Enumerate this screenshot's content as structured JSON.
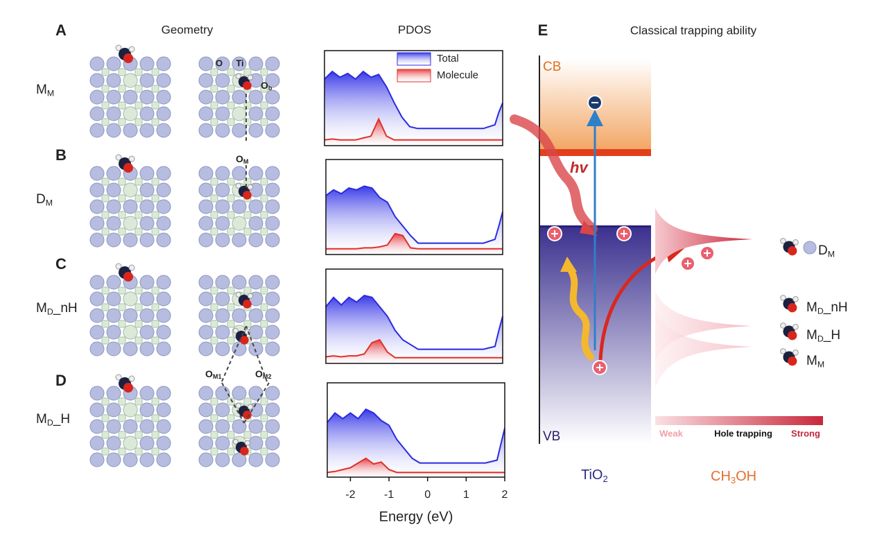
{
  "figure": {
    "geometry_title": "Geometry",
    "pdos_title": "PDOS",
    "panels": [
      {
        "letter": "A",
        "label": {
          "base": "M",
          "sub": "M",
          "rest": ""
        }
      },
      {
        "letter": "B",
        "label": {
          "base": "D",
          "sub": "M",
          "rest": ""
        }
      },
      {
        "letter": "C",
        "label": {
          "base": "M",
          "sub": "D",
          "rest": "_nH"
        }
      },
      {
        "letter": "D",
        "label": {
          "base": "M",
          "sub": "D",
          "rest": "_H"
        }
      }
    ],
    "atom_labels": {
      "o": "O",
      "ti": "Ti",
      "ob": {
        "base": "O",
        "sub": "b"
      },
      "om": {
        "base": "O",
        "sub": "M"
      },
      "om1": {
        "base": "O",
        "sub": "M1"
      },
      "om2": {
        "base": "O",
        "sub": "M2"
      }
    },
    "e_panel": {
      "letter": "E",
      "title": "Classical trapping ability",
      "cb": "CB",
      "vb": "VB",
      "hv": "hv",
      "tio2": {
        "base": "TiO",
        "sub": "2",
        "rest": ""
      },
      "ch3oh": {
        "base": "CH",
        "sub": "3",
        "rest": "OH"
      },
      "scale": {
        "weak": "Weak",
        "mid": "Hole trapping",
        "strong": "Strong"
      },
      "molecules": [
        {
          "base": "D",
          "sub": "M",
          "rest": ""
        },
        {
          "base": "M",
          "sub": "D",
          "rest": "_nH"
        },
        {
          "base": "M",
          "sub": "D",
          "rest": "_H"
        },
        {
          "base": "M",
          "sub": "M",
          "rest": ""
        }
      ]
    }
  },
  "chart_data": [
    {
      "type": "area",
      "xlim": [
        -2.6,
        2
      ],
      "ylim": [
        0,
        1
      ],
      "x": [
        -2.6,
        -2.4,
        -2.2,
        -2.0,
        -1.8,
        -1.6,
        -1.4,
        -1.2,
        -1.0,
        -0.8,
        -0.6,
        -0.4,
        -0.2,
        0,
        0.5,
        1.0,
        1.5,
        1.8,
        1.9,
        2.0
      ],
      "series": [
        {
          "name": "Total",
          "color": "#2a2ae0",
          "values": [
            0.7,
            0.78,
            0.72,
            0.76,
            0.7,
            0.78,
            0.72,
            0.75,
            0.62,
            0.45,
            0.3,
            0.2,
            0.18,
            0.18,
            0.18,
            0.18,
            0.18,
            0.22,
            0.35,
            0.45
          ]
        },
        {
          "name": "Molecule",
          "color": "#e0302a",
          "values": [
            0.06,
            0.07,
            0.06,
            0.06,
            0.06,
            0.08,
            0.1,
            0.28,
            0.1,
            0.06,
            0.06,
            0.06,
            0.06,
            0.06,
            0.06,
            0.06,
            0.06,
            0.06,
            0.06,
            0.06
          ]
        }
      ]
    },
    {
      "type": "area",
      "xlim": [
        -2.6,
        2
      ],
      "ylim": [
        0,
        1
      ],
      "x": [
        -2.6,
        -2.4,
        -2.2,
        -2.0,
        -1.8,
        -1.6,
        -1.4,
        -1.2,
        -1.0,
        -0.8,
        -0.6,
        -0.4,
        -0.2,
        0,
        0.5,
        1.0,
        1.5,
        1.8,
        1.9,
        2.0
      ],
      "series": [
        {
          "color": "#2a2ae0",
          "values": [
            0.62,
            0.68,
            0.64,
            0.7,
            0.68,
            0.72,
            0.7,
            0.6,
            0.55,
            0.4,
            0.3,
            0.2,
            0.12,
            0.12,
            0.12,
            0.12,
            0.12,
            0.16,
            0.3,
            0.45
          ]
        },
        {
          "color": "#e0302a",
          "values": [
            0.06,
            0.06,
            0.06,
            0.06,
            0.06,
            0.07,
            0.07,
            0.08,
            0.1,
            0.22,
            0.2,
            0.07,
            0.06,
            0.06,
            0.06,
            0.06,
            0.06,
            0.06,
            0.06,
            0.06
          ]
        }
      ]
    },
    {
      "type": "area",
      "xlim": [
        -2.6,
        2
      ],
      "ylim": [
        0,
        1
      ],
      "x": [
        -2.6,
        -2.4,
        -2.2,
        -2.0,
        -1.8,
        -1.6,
        -1.4,
        -1.2,
        -1.0,
        -0.8,
        -0.6,
        -0.4,
        -0.2,
        0,
        0.5,
        1.0,
        1.5,
        1.8,
        1.9,
        2.0
      ],
      "series": [
        {
          "color": "#2a2ae0",
          "values": [
            0.6,
            0.7,
            0.62,
            0.7,
            0.65,
            0.72,
            0.7,
            0.6,
            0.5,
            0.35,
            0.25,
            0.2,
            0.15,
            0.15,
            0.15,
            0.15,
            0.15,
            0.18,
            0.35,
            0.5
          ]
        },
        {
          "color": "#e0302a",
          "values": [
            0.07,
            0.08,
            0.07,
            0.08,
            0.08,
            0.1,
            0.22,
            0.25,
            0.12,
            0.06,
            0.06,
            0.06,
            0.06,
            0.06,
            0.06,
            0.06,
            0.06,
            0.06,
            0.06,
            0.06
          ]
        }
      ]
    },
    {
      "type": "area",
      "xlim": [
        -2.6,
        2
      ],
      "ylim": [
        0,
        1
      ],
      "x_label": "Energy (eV)",
      "xticks": [
        -2,
        -1,
        0,
        1,
        2
      ],
      "x": [
        -2.6,
        -2.4,
        -2.2,
        -2.0,
        -1.8,
        -1.6,
        -1.4,
        -1.2,
        -1.0,
        -0.8,
        -0.6,
        -0.4,
        -0.2,
        0,
        0.5,
        1.0,
        1.5,
        1.8,
        1.9,
        2.0
      ],
      "series": [
        {
          "color": "#2a2ae0",
          "values": [
            0.58,
            0.68,
            0.62,
            0.68,
            0.62,
            0.72,
            0.68,
            0.6,
            0.55,
            0.4,
            0.3,
            0.2,
            0.15,
            0.15,
            0.15,
            0.15,
            0.15,
            0.18,
            0.35,
            0.52
          ]
        },
        {
          "color": "#e0302a",
          "values": [
            0.05,
            0.06,
            0.08,
            0.1,
            0.15,
            0.2,
            0.14,
            0.16,
            0.08,
            0.05,
            0.05,
            0.05,
            0.05,
            0.05,
            0.05,
            0.05,
            0.05,
            0.05,
            0.05,
            0.05
          ]
        }
      ]
    }
  ]
}
